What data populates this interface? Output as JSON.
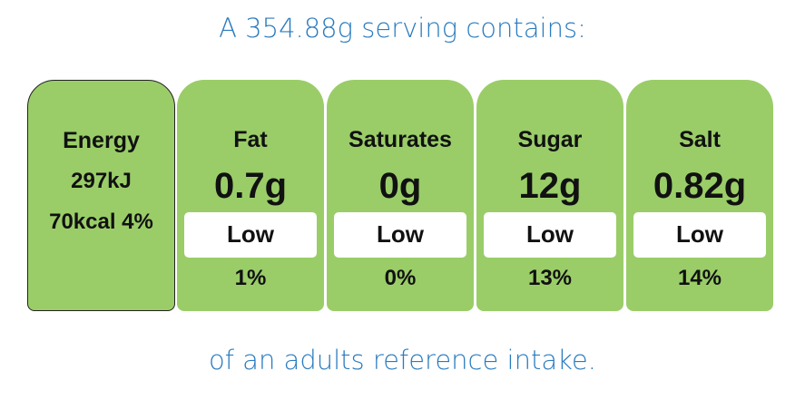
{
  "header": {
    "title": "A 354.88g serving contains:"
  },
  "energy": {
    "label": "Energy",
    "kj": "297kJ",
    "kcal_percent": "70kcal 4%"
  },
  "nutrients": [
    {
      "name": "Fat",
      "amount": "0.7g",
      "level": "Low",
      "percent": "1%"
    },
    {
      "name": "Saturates",
      "amount": "0g",
      "level": "Low",
      "percent": "0%"
    },
    {
      "name": "Sugar",
      "amount": "12g",
      "level": "Low",
      "percent": "13%"
    },
    {
      "name": "Salt",
      "amount": "0.82g",
      "level": "Low",
      "percent": "14%"
    }
  ],
  "footer": {
    "text": "of an adults reference intake."
  }
}
